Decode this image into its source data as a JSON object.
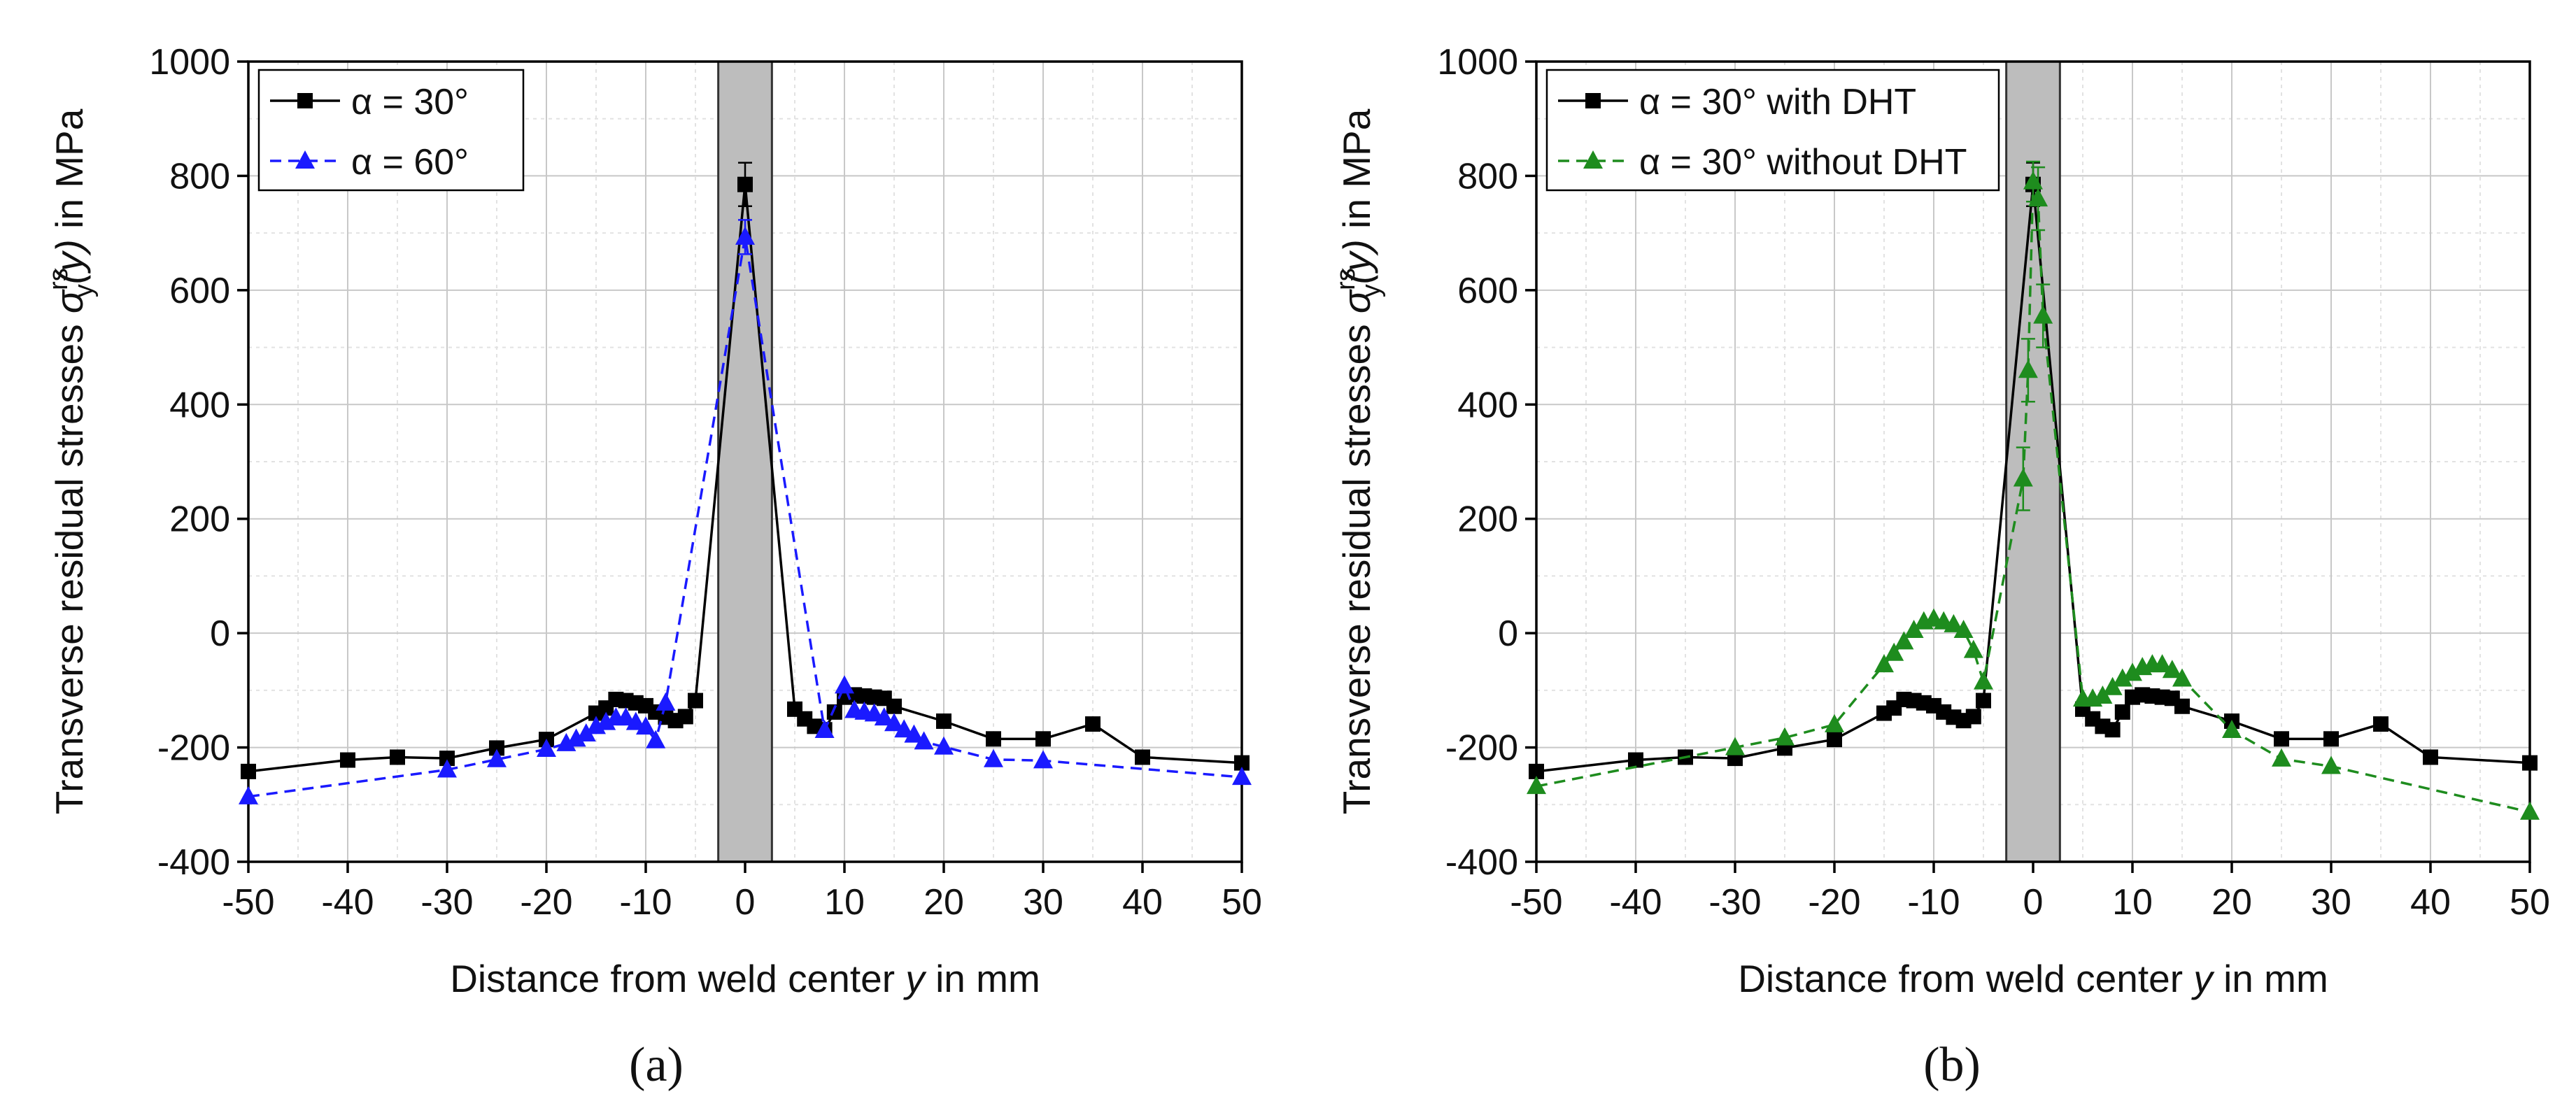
{
  "chart_data": [
    {
      "panel_label": "(a)",
      "type": "line",
      "xlabel_pre": "Distance from weld center ",
      "xlabel_var": "y",
      "xlabel_post": " in mm",
      "ylabel_pre": "Transverse residual stresses ",
      "ylabel_sigma": "σ",
      "ylabel_sup": "rs",
      "ylabel_sub": "y",
      "ylabel_arg": "(y)",
      "ylabel_post": " in MPa",
      "xlim": [
        -50,
        50
      ],
      "ylim": [
        -400,
        1000
      ],
      "xticks": [
        -50,
        -40,
        -30,
        -20,
        -10,
        0,
        10,
        20,
        30,
        40,
        50
      ],
      "yticks": [
        -400,
        -200,
        0,
        200,
        400,
        600,
        800,
        1000
      ],
      "grid": true,
      "legend_position": "top-left",
      "weld_zone": [
        -2.7,
        2.7
      ],
      "series": [
        {
          "name": "α = 30°",
          "color": "#000000",
          "marker": "square",
          "line": "solid",
          "points": [
            [
              -50,
              -242
            ],
            [
              -40,
              -222
            ],
            [
              -35,
              -217
            ],
            [
              -30,
              -219
            ],
            [
              -25,
              -201
            ],
            [
              -20,
              -186
            ],
            [
              -15,
              -140
            ],
            [
              -14,
              -131
            ],
            [
              -13,
              -116
            ],
            [
              -12,
              -118
            ],
            [
              -11,
              -122
            ],
            [
              -10,
              -127
            ],
            [
              -9,
              -138
            ],
            [
              -8,
              -147
            ],
            [
              -7,
              -153
            ],
            [
              -6,
              -146
            ],
            [
              -5,
              -118
            ],
            [
              0,
              785
            ],
            [
              5,
              -133
            ],
            [
              6,
              -150
            ],
            [
              7,
              -163
            ],
            [
              8,
              -169
            ],
            [
              9,
              -138
            ],
            [
              10,
              -112
            ],
            [
              11,
              -108
            ],
            [
              12,
              -110
            ],
            [
              13,
              -112
            ],
            [
              14,
              -114
            ],
            [
              15,
              -128
            ],
            [
              20,
              -154
            ],
            [
              25,
              -185
            ],
            [
              30,
              -185
            ],
            [
              35,
              -159
            ],
            [
              40,
              -217
            ],
            [
              50,
              -227
            ]
          ],
          "error_bars": [
            [
              0,
              38
            ]
          ]
        },
        {
          "name": "α = 60°",
          "color": "#1a1aff",
          "marker": "triangle",
          "line": "dashed",
          "points": [
            [
              -50,
              -286
            ],
            [
              -30,
              -239
            ],
            [
              -25,
              -221
            ],
            [
              -20,
              -203
            ],
            [
              -18,
              -193
            ],
            [
              -17,
              -185
            ],
            [
              -16,
              -176
            ],
            [
              -15,
              -163
            ],
            [
              -14,
              -156
            ],
            [
              -13,
              -148
            ],
            [
              -12,
              -148
            ],
            [
              -11,
              -156
            ],
            [
              -10,
              -164
            ],
            [
              -9,
              -188
            ],
            [
              -8,
              -122
            ],
            [
              0,
              693
            ],
            [
              8,
              -170
            ],
            [
              10,
              -92
            ],
            [
              11,
              -135
            ],
            [
              12,
              -138
            ],
            [
              13,
              -141
            ],
            [
              14,
              -148
            ],
            [
              15,
              -158
            ],
            [
              16,
              -169
            ],
            [
              17,
              -178
            ],
            [
              18,
              -190
            ],
            [
              20,
              -199
            ],
            [
              25,
              -221
            ],
            [
              30,
              -223
            ],
            [
              50,
              -252
            ]
          ],
          "error_bars": [
            [
              0,
              30
            ]
          ]
        }
      ]
    },
    {
      "panel_label": "(b)",
      "type": "line",
      "xlabel_pre": "Distance from weld center ",
      "xlabel_var": "y",
      "xlabel_post": " in mm",
      "ylabel_pre": "Transverse residual stresses ",
      "ylabel_sigma": "σ",
      "ylabel_sup": "rs",
      "ylabel_sub": "y",
      "ylabel_arg": "(y)",
      "ylabel_post": " in MPa",
      "xlim": [
        -50,
        50
      ],
      "ylim": [
        -400,
        1000
      ],
      "xticks": [
        -50,
        -40,
        -30,
        -20,
        -10,
        0,
        10,
        20,
        30,
        40,
        50
      ],
      "yticks": [
        -400,
        -200,
        0,
        200,
        400,
        600,
        800,
        1000
      ],
      "grid": true,
      "legend_position": "top-left",
      "weld_zone": [
        -2.7,
        2.7
      ],
      "series": [
        {
          "name": "α = 30° with DHT",
          "color": "#000000",
          "marker": "square",
          "line": "solid",
          "points": [
            [
              -50,
              -242
            ],
            [
              -40,
              -222
            ],
            [
              -35,
              -217
            ],
            [
              -30,
              -219
            ],
            [
              -25,
              -201
            ],
            [
              -20,
              -186
            ],
            [
              -15,
              -140
            ],
            [
              -14,
              -131
            ],
            [
              -13,
              -116
            ],
            [
              -12,
              -118
            ],
            [
              -11,
              -122
            ],
            [
              -10,
              -127
            ],
            [
              -9,
              -138
            ],
            [
              -8,
              -147
            ],
            [
              -7,
              -153
            ],
            [
              -6,
              -146
            ],
            [
              -5,
              -118
            ],
            [
              0,
              785
            ],
            [
              5,
              -133
            ],
            [
              6,
              -150
            ],
            [
              7,
              -163
            ],
            [
              8,
              -169
            ],
            [
              9,
              -138
            ],
            [
              10,
              -112
            ],
            [
              11,
              -108
            ],
            [
              12,
              -110
            ],
            [
              13,
              -112
            ],
            [
              14,
              -114
            ],
            [
              15,
              -128
            ],
            [
              20,
              -154
            ],
            [
              25,
              -185
            ],
            [
              30,
              -185
            ],
            [
              35,
              -159
            ],
            [
              40,
              -217
            ],
            [
              50,
              -227
            ]
          ],
          "error_bars": [
            [
              0,
              38
            ]
          ]
        },
        {
          "name": "α = 30° without DHT",
          "color": "#1e8c1e",
          "marker": "triangle",
          "line": "dashed",
          "points": [
            [
              -50,
              -268
            ],
            [
              -30,
              -200
            ],
            [
              -25,
              -183
            ],
            [
              -20,
              -160
            ],
            [
              -15,
              -55
            ],
            [
              -14,
              -35
            ],
            [
              -13,
              -15
            ],
            [
              -12,
              5
            ],
            [
              -11,
              20
            ],
            [
              -10,
              25
            ],
            [
              -9,
              20
            ],
            [
              -8,
              15
            ],
            [
              -7,
              5
            ],
            [
              -6,
              -30
            ],
            [
              -5,
              -85
            ],
            [
              -1,
              270
            ],
            [
              -0.5,
              460
            ],
            [
              0,
              790
            ],
            [
              0.5,
              760
            ],
            [
              1,
              555
            ],
            [
              5,
              -115
            ],
            [
              6,
              -115
            ],
            [
              7,
              -110
            ],
            [
              8,
              -95
            ],
            [
              9,
              -80
            ],
            [
              10,
              -70
            ],
            [
              11,
              -60
            ],
            [
              12,
              -55
            ],
            [
              13,
              -55
            ],
            [
              14,
              -65
            ],
            [
              15,
              -80
            ],
            [
              20,
              -170
            ],
            [
              25,
              -220
            ],
            [
              30,
              -233
            ],
            [
              50,
              -313
            ]
          ],
          "error_bars": [
            [
              -1,
              55
            ],
            [
              -0.5,
              55
            ],
            [
              0,
              35
            ],
            [
              0.5,
              55
            ],
            [
              1,
              55
            ]
          ]
        }
      ]
    }
  ]
}
